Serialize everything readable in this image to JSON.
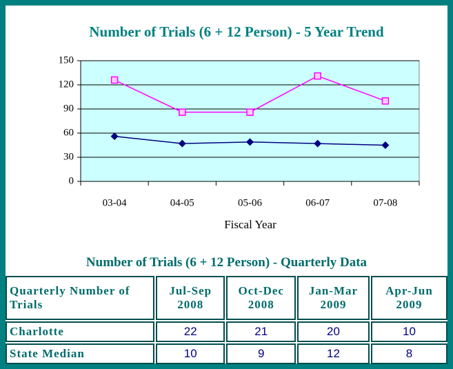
{
  "chart_data": {
    "type": "line",
    "title": "Number of Trials (6 + 12 Person) - 5 Year Trend",
    "x_label": "Fiscal Year",
    "categories": [
      "03-04",
      "04-05",
      "05-06",
      "06-07",
      "07-08"
    ],
    "series": [
      {
        "color": "#ff00ff",
        "marker": "square",
        "values": [
          126,
          86,
          86,
          131,
          100
        ]
      },
      {
        "color": "#000080",
        "marker": "diamond",
        "values": [
          56,
          47,
          49,
          47,
          45
        ]
      }
    ],
    "ylim": [
      0,
      150
    ],
    "yticks": [
      0,
      30,
      60,
      90,
      120,
      150
    ],
    "grid": true,
    "plot_background": "#ccffff"
  },
  "table": {
    "title": "Number of Trials (6 + 12 Person) - Quarterly Data",
    "header": [
      "Quarterly Number of Trials",
      "Jul-Sep 2008",
      "Oct-Dec 2008",
      "Jan-Mar 2009",
      "Apr-Jun 2009"
    ],
    "rows": [
      [
        "Charlotte",
        22,
        21,
        20,
        10
      ],
      [
        "State Median",
        10,
        9,
        12,
        8
      ]
    ]
  }
}
